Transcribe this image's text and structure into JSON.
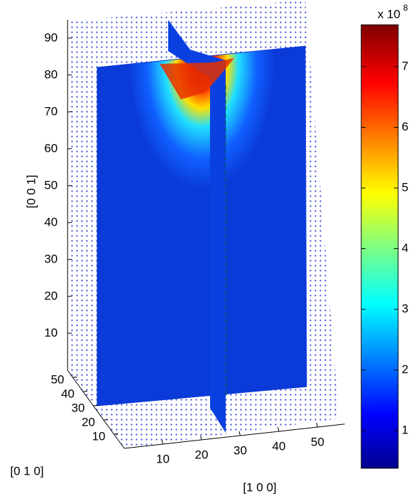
{
  "chart_data": {
    "type": "slice3d",
    "xlabel": "[1 0 0]",
    "ylabel": "[0 1 0]",
    "zlabel": "[0 0 1]",
    "xlim": [
      0,
      57
    ],
    "ylim": [
      0,
      55
    ],
    "zlim": [
      0,
      95
    ],
    "xticks": [
      10,
      20,
      30,
      40,
      50
    ],
    "yticks": [
      10,
      20,
      30,
      40,
      50
    ],
    "zticks": [
      10,
      20,
      30,
      40,
      50,
      60,
      70,
      80,
      90
    ],
    "colorbar": {
      "colormap": "jet",
      "lim": [
        0.38,
        7.69
      ],
      "ticks": [
        1,
        2,
        3,
        4,
        5,
        6,
        7
      ],
      "exponent_label": "x 10",
      "exponent": 8
    }
  }
}
